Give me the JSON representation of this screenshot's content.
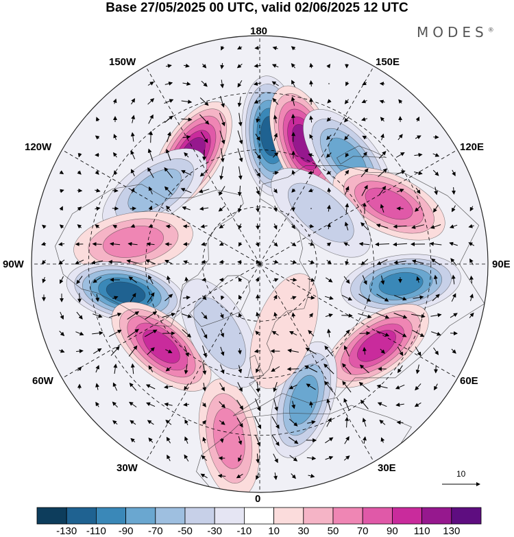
{
  "title": "Base 27/05/2025 00 UTC, valid 02/06/2025 12 UTC",
  "brand": "MODES",
  "brand_mark": "®",
  "longitude_labels": {
    "lon_180": "180",
    "lon_150W": "150W",
    "lon_150E": "150E",
    "lon_120W": "120W",
    "lon_120E": "120E",
    "lon_90W": "90W",
    "lon_90E": "90E",
    "lon_60W": "60W",
    "lon_60E": "60E",
    "lon_30W": "30W",
    "lon_30E": "30E",
    "lon_0": "0"
  },
  "reference_vector": "10",
  "colorbar": {
    "colors": [
      "#0d3d5c",
      "#1f6291",
      "#3a88b8",
      "#6aa7d0",
      "#9ebfe0",
      "#c7d0e8",
      "#e5e5f3",
      "#ffffff",
      "#fbdcdc",
      "#f5b4c6",
      "#ef86b4",
      "#e059a8",
      "#c92b9c",
      "#96188e",
      "#5e0d80"
    ],
    "labels": [
      "-130",
      "-110",
      "-90",
      "-70",
      "-50",
      "-30",
      "-10",
      "10",
      "30",
      "50",
      "70",
      "90",
      "110",
      "130"
    ]
  },
  "colors": {
    "negative_strong": "#1f6291",
    "negative_mid": "#6aa7d0",
    "negative_weak": "#c7d0e8",
    "positive_weak": "#f5b4c6",
    "positive_mid": "#e059a8",
    "positive_strong": "#96188e"
  },
  "anomaly_centers": [
    {
      "name": "anomaly-180",
      "lon": 175,
      "lat": 45,
      "value": -120
    },
    {
      "name": "anomaly-160E",
      "lon": 160,
      "lat": 45,
      "value": 110
    },
    {
      "name": "anomaly-145W",
      "lon": -148,
      "lat": 45,
      "value": 115
    },
    {
      "name": "anomaly-140E",
      "lon": 140,
      "lat": 42,
      "value": -75
    },
    {
      "name": "anomaly-115E",
      "lon": 115,
      "lat": 40,
      "value": 80
    },
    {
      "name": "anomaly-125W",
      "lon": -125,
      "lat": 45,
      "value": -55
    },
    {
      "name": "anomaly-100W",
      "lon": -100,
      "lat": 45,
      "value": 65
    },
    {
      "name": "anomaly-80E",
      "lon": 82,
      "lat": 40,
      "value": -95
    },
    {
      "name": "anomaly-78W",
      "lon": -78,
      "lat": 42,
      "value": -110
    },
    {
      "name": "anomaly-50W",
      "lon": -50,
      "lat": 45,
      "value": 100
    },
    {
      "name": "anomaly-55E",
      "lon": 55,
      "lat": 40,
      "value": 90
    },
    {
      "name": "anomaly-20E",
      "lon": 18,
      "lat": 40,
      "value": -85
    },
    {
      "name": "anomaly-10W",
      "lon": -10,
      "lat": 28,
      "value": 50
    },
    {
      "name": "anomaly-30W",
      "lon": -30,
      "lat": 62,
      "value": -35
    },
    {
      "name": "anomaly-130E",
      "lon": 130,
      "lat": 62,
      "value": -30
    },
    {
      "name": "anomaly-20E-60N",
      "lon": 20,
      "lat": 65,
      "value": 25
    }
  ]
}
